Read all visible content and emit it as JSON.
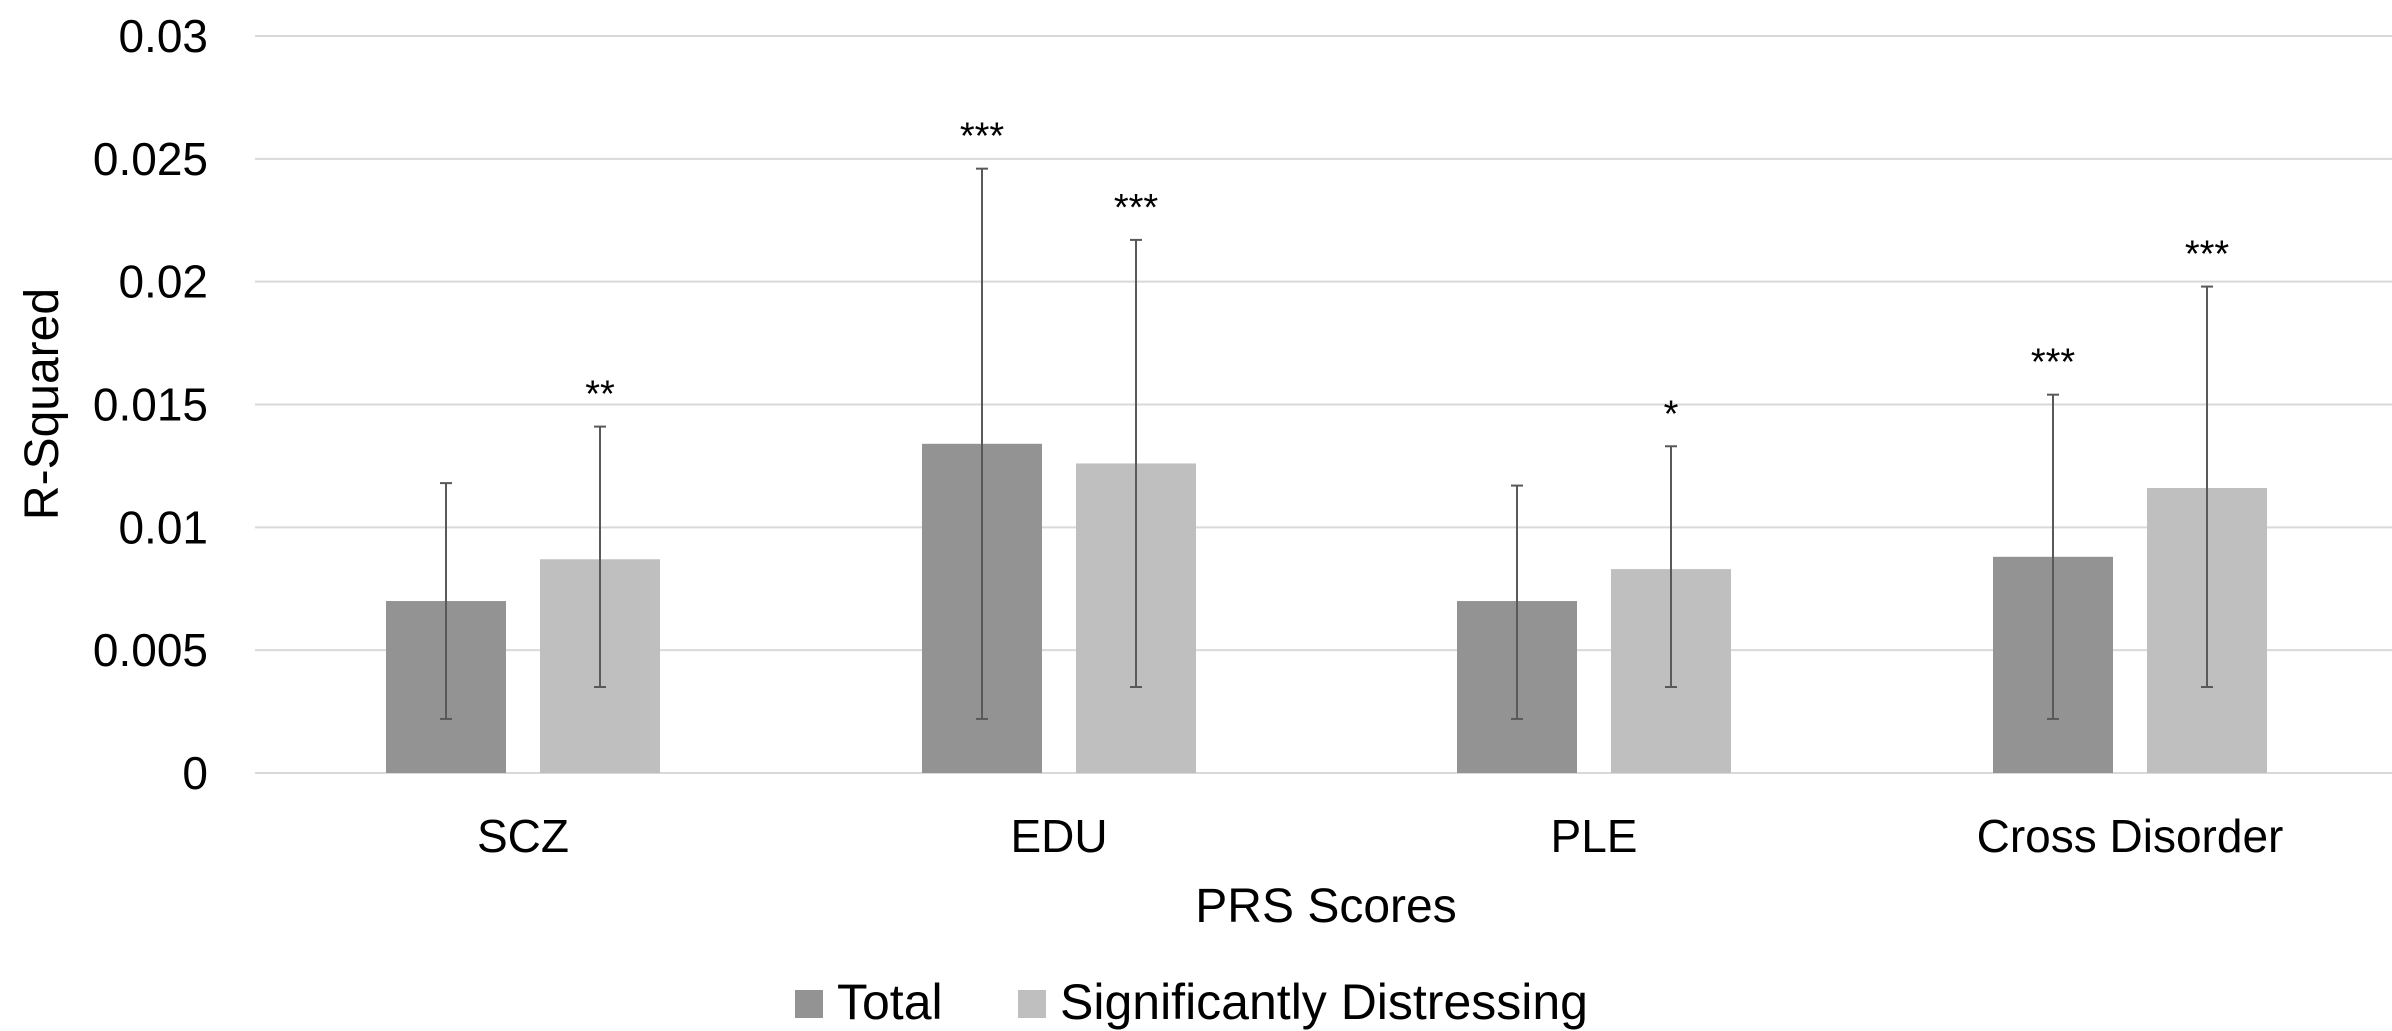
{
  "chart_data": {
    "type": "bar",
    "title": "",
    "xlabel": "PRS Scores",
    "ylabel": "R-Squared",
    "ylim": [
      0,
      0.03
    ],
    "yticks": [
      0,
      0.005,
      0.01,
      0.015,
      0.02,
      0.025,
      0.03
    ],
    "ytick_labels": [
      "0",
      "0.005",
      "0.01",
      "0.015",
      "0.02",
      "0.025",
      "0.03"
    ],
    "grid": true,
    "legend_position": "bottom",
    "categories": [
      "SCZ",
      "EDU",
      "PLE",
      "Cross Disorder"
    ],
    "series": [
      {
        "name": "Total",
        "color": "#939393",
        "values": [
          0.007,
          0.0134,
          0.007,
          0.0088
        ],
        "error_low": [
          0.0022,
          0.0022,
          0.0022,
          0.0022
        ],
        "error_high": [
          0.0118,
          0.0246,
          0.0117,
          0.0154
        ],
        "significance": [
          "",
          "***",
          "",
          "***"
        ]
      },
      {
        "name": "Significantly Distressing",
        "color": "#bfbfbf",
        "values": [
          0.0087,
          0.0126,
          0.0083,
          0.0116
        ],
        "error_low": [
          0.0035,
          0.0035,
          0.0035,
          0.0035
        ],
        "error_high": [
          0.0141,
          0.0217,
          0.0133,
          0.0198
        ],
        "significance": [
          "**",
          "***",
          "*",
          "***"
        ]
      }
    ]
  }
}
